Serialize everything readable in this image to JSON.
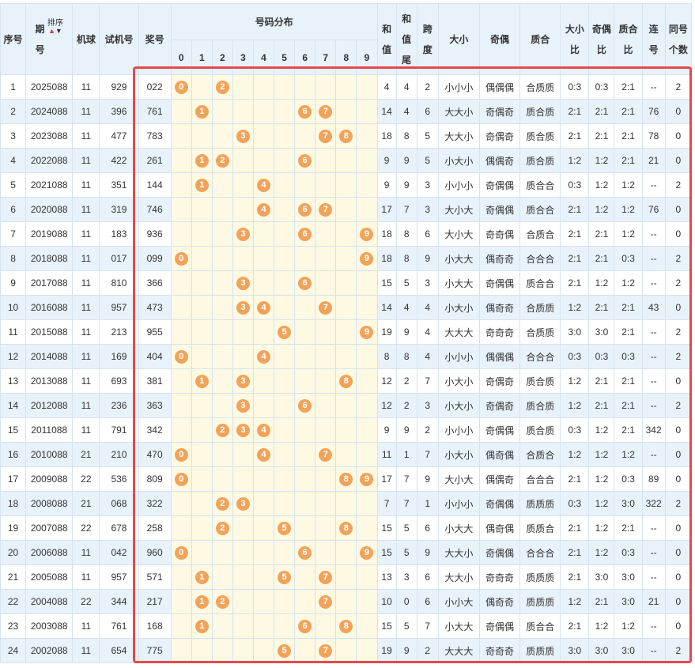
{
  "header": {
    "seq": "序号",
    "period_line1": "期",
    "period_line2": "号",
    "sort_label": "排序",
    "machine": "机球",
    "trial": "试机号",
    "prize": "奖号",
    "dist": "号码分布",
    "digits": [
      "0",
      "1",
      "2",
      "3",
      "4",
      "5",
      "6",
      "7",
      "8",
      "9"
    ],
    "sum_line1": "和",
    "sum_line2": "值",
    "sumtail_line1": "和",
    "sumtail_line2": "值",
    "sumtail_line3": "尾",
    "span_line1": "跨",
    "span_line2": "度",
    "size": "大小",
    "parity": "奇偶",
    "prime": "质合",
    "size_ratio_line1": "大小",
    "size_ratio_line2": "比",
    "parity_ratio_line1": "奇偶",
    "parity_ratio_line2": "比",
    "prime_ratio_line1": "质合",
    "prime_ratio_line2": "比",
    "consec_line1": "连",
    "consec_line2": "号",
    "same_line1": "同号",
    "same_line2": "个数"
  },
  "colors": {
    "accent": "#f2a35a",
    "header_bg": "#e8f2fb",
    "highlight_border": "#e8474c"
  },
  "rows": [
    {
      "seq": "1",
      "period": "2025088",
      "machine": "11",
      "trial": "929",
      "prize": "022",
      "digits": [
        0,
        2
      ],
      "sum": "4",
      "sumtail": "4",
      "span": "2",
      "size": "小小小",
      "parity": "偶偶偶",
      "prime": "合质质",
      "sr": "0:3",
      "pr": "0:3",
      "qr": "2:1",
      "consec": "--",
      "same": "2"
    },
    {
      "seq": "2",
      "period": "2024088",
      "machine": "11",
      "trial": "396",
      "prize": "761",
      "digits": [
        1,
        6,
        7
      ],
      "sum": "14",
      "sumtail": "4",
      "span": "6",
      "size": "大大小",
      "parity": "奇偶奇",
      "prime": "质合质",
      "sr": "2:1",
      "pr": "2:1",
      "qr": "2:1",
      "consec": "76",
      "same": "0"
    },
    {
      "seq": "3",
      "period": "2023088",
      "machine": "11",
      "trial": "477",
      "prize": "783",
      "digits": [
        3,
        7,
        8
      ],
      "sum": "18",
      "sumtail": "8",
      "span": "5",
      "size": "大大小",
      "parity": "奇偶奇",
      "prime": "质合质",
      "sr": "2:1",
      "pr": "2:1",
      "qr": "2:1",
      "consec": "78",
      "same": "0"
    },
    {
      "seq": "4",
      "period": "2022088",
      "machine": "11",
      "trial": "422",
      "prize": "261",
      "digits": [
        1,
        2,
        6
      ],
      "sum": "9",
      "sumtail": "9",
      "span": "5",
      "size": "小大小",
      "parity": "偶偶奇",
      "prime": "质合质",
      "sr": "1:2",
      "pr": "1:2",
      "qr": "2:1",
      "consec": "21",
      "same": "0"
    },
    {
      "seq": "5",
      "period": "2021088",
      "machine": "11",
      "trial": "351",
      "prize": "144",
      "digits": [
        1,
        4
      ],
      "sum": "9",
      "sumtail": "9",
      "span": "3",
      "size": "小小小",
      "parity": "奇偶偶",
      "prime": "质合合",
      "sr": "0:3",
      "pr": "1:2",
      "qr": "1:2",
      "consec": "--",
      "same": "2"
    },
    {
      "seq": "6",
      "period": "2020088",
      "machine": "11",
      "trial": "319",
      "prize": "746",
      "digits": [
        4,
        6,
        7
      ],
      "sum": "17",
      "sumtail": "7",
      "span": "3",
      "size": "大小大",
      "parity": "奇偶偶",
      "prime": "质合合",
      "sr": "2:1",
      "pr": "1:2",
      "qr": "1:2",
      "consec": "76",
      "same": "0"
    },
    {
      "seq": "7",
      "period": "2019088",
      "machine": "11",
      "trial": "183",
      "prize": "936",
      "digits": [
        3,
        6,
        9
      ],
      "sum": "18",
      "sumtail": "8",
      "span": "6",
      "size": "大小大",
      "parity": "奇奇偶",
      "prime": "合质合",
      "sr": "2:1",
      "pr": "2:1",
      "qr": "1:2",
      "consec": "--",
      "same": "0"
    },
    {
      "seq": "8",
      "period": "2018088",
      "machine": "11",
      "trial": "017",
      "prize": "099",
      "digits": [
        0,
        9
      ],
      "sum": "18",
      "sumtail": "8",
      "span": "9",
      "size": "小大大",
      "parity": "偶奇奇",
      "prime": "合合合",
      "sr": "2:1",
      "pr": "2:1",
      "qr": "0:3",
      "consec": "--",
      "same": "2"
    },
    {
      "seq": "9",
      "period": "2017088",
      "machine": "11",
      "trial": "810",
      "prize": "366",
      "digits": [
        3,
        6
      ],
      "sum": "15",
      "sumtail": "5",
      "span": "3",
      "size": "小大大",
      "parity": "奇偶偶",
      "prime": "质合合",
      "sr": "2:1",
      "pr": "1:2",
      "qr": "1:2",
      "consec": "--",
      "same": "2"
    },
    {
      "seq": "10",
      "period": "2016088",
      "machine": "11",
      "trial": "957",
      "prize": "473",
      "digits": [
        3,
        4,
        7
      ],
      "sum": "14",
      "sumtail": "4",
      "span": "4",
      "size": "小大小",
      "parity": "偶奇奇",
      "prime": "合质质",
      "sr": "1:2",
      "pr": "2:1",
      "qr": "2:1",
      "consec": "43",
      "same": "0"
    },
    {
      "seq": "11",
      "period": "2015088",
      "machine": "11",
      "trial": "213",
      "prize": "955",
      "digits": [
        5,
        9
      ],
      "sum": "19",
      "sumtail": "9",
      "span": "4",
      "size": "大大大",
      "parity": "奇奇奇",
      "prime": "合质质",
      "sr": "3:0",
      "pr": "3:0",
      "qr": "2:1",
      "consec": "--",
      "same": "2"
    },
    {
      "seq": "12",
      "period": "2014088",
      "machine": "11",
      "trial": "169",
      "prize": "404",
      "digits": [
        0,
        4
      ],
      "sum": "8",
      "sumtail": "8",
      "span": "4",
      "size": "小小小",
      "parity": "偶偶偶",
      "prime": "合合合",
      "sr": "0:3",
      "pr": "0:3",
      "qr": "0:3",
      "consec": "--",
      "same": "2"
    },
    {
      "seq": "13",
      "period": "2013088",
      "machine": "11",
      "trial": "693",
      "prize": "381",
      "digits": [
        1,
        3,
        8
      ],
      "sum": "12",
      "sumtail": "2",
      "span": "7",
      "size": "小大小",
      "parity": "奇偶奇",
      "prime": "质合质",
      "sr": "1:2",
      "pr": "2:1",
      "qr": "2:1",
      "consec": "--",
      "same": "0"
    },
    {
      "seq": "14",
      "period": "2012088",
      "machine": "11",
      "trial": "236",
      "prize": "363",
      "digits": [
        3,
        6
      ],
      "sum": "12",
      "sumtail": "2",
      "span": "3",
      "size": "小大小",
      "parity": "奇偶奇",
      "prime": "质合质",
      "sr": "1:2",
      "pr": "2:1",
      "qr": "2:1",
      "consec": "--",
      "same": "2"
    },
    {
      "seq": "15",
      "period": "2011088",
      "machine": "11",
      "trial": "791",
      "prize": "342",
      "digits": [
        2,
        3,
        4
      ],
      "sum": "9",
      "sumtail": "9",
      "span": "2",
      "size": "小小小",
      "parity": "奇偶偶",
      "prime": "质合质",
      "sr": "0:3",
      "pr": "1:2",
      "qr": "2:1",
      "consec": "342",
      "same": "0"
    },
    {
      "seq": "16",
      "period": "2010088",
      "machine": "21",
      "trial": "210",
      "prize": "470",
      "digits": [
        0,
        4,
        7
      ],
      "sum": "11",
      "sumtail": "1",
      "span": "7",
      "size": "小大小",
      "parity": "偶奇偶",
      "prime": "合质合",
      "sr": "1:2",
      "pr": "1:2",
      "qr": "1:2",
      "consec": "--",
      "same": "0"
    },
    {
      "seq": "17",
      "period": "2009088",
      "machine": "22",
      "trial": "536",
      "prize": "809",
      "digits": [
        0,
        8,
        9
      ],
      "sum": "17",
      "sumtail": "7",
      "span": "9",
      "size": "大小大",
      "parity": "偶偶奇",
      "prime": "合合合",
      "sr": "2:1",
      "pr": "1:2",
      "qr": "0:3",
      "consec": "89",
      "same": "0"
    },
    {
      "seq": "18",
      "period": "2008088",
      "machine": "21",
      "trial": "068",
      "prize": "322",
      "digits": [
        2,
        3
      ],
      "sum": "7",
      "sumtail": "7",
      "span": "1",
      "size": "小小小",
      "parity": "奇偶偶",
      "prime": "质质质",
      "sr": "0:3",
      "pr": "1:2",
      "qr": "3:0",
      "consec": "322",
      "same": "2"
    },
    {
      "seq": "19",
      "period": "2007088",
      "machine": "22",
      "trial": "678",
      "prize": "258",
      "digits": [
        2,
        5,
        8
      ],
      "sum": "15",
      "sumtail": "5",
      "span": "6",
      "size": "小大大",
      "parity": "偶奇偶",
      "prime": "质质合",
      "sr": "2:1",
      "pr": "1:2",
      "qr": "2:1",
      "consec": "--",
      "same": "0"
    },
    {
      "seq": "20",
      "period": "2006088",
      "machine": "11",
      "trial": "042",
      "prize": "960",
      "digits": [
        0,
        6,
        9
      ],
      "sum": "15",
      "sumtail": "5",
      "span": "9",
      "size": "大大小",
      "parity": "奇偶偶",
      "prime": "合合合",
      "sr": "2:1",
      "pr": "1:2",
      "qr": "0:3",
      "consec": "--",
      "same": "0"
    },
    {
      "seq": "21",
      "period": "2005088",
      "machine": "11",
      "trial": "957",
      "prize": "571",
      "digits": [
        1,
        5,
        7
      ],
      "sum": "13",
      "sumtail": "3",
      "span": "6",
      "size": "大大小",
      "parity": "奇奇奇",
      "prime": "质质质",
      "sr": "2:1",
      "pr": "3:0",
      "qr": "3:0",
      "consec": "--",
      "same": "0"
    },
    {
      "seq": "22",
      "period": "2004088",
      "machine": "22",
      "trial": "344",
      "prize": "217",
      "digits": [
        1,
        2,
        7
      ],
      "sum": "10",
      "sumtail": "0",
      "span": "6",
      "size": "小小大",
      "parity": "偶奇奇",
      "prime": "质质质",
      "sr": "1:2",
      "pr": "2:1",
      "qr": "3:0",
      "consec": "21",
      "same": "0"
    },
    {
      "seq": "23",
      "period": "2003088",
      "machine": "11",
      "trial": "761",
      "prize": "168",
      "digits": [
        1,
        6,
        8
      ],
      "sum": "15",
      "sumtail": "5",
      "span": "7",
      "size": "小大大",
      "parity": "奇偶偶",
      "prime": "质合合",
      "sr": "2:1",
      "pr": "1:2",
      "qr": "1:2",
      "consec": "--",
      "same": "0"
    },
    {
      "seq": "24",
      "period": "2002088",
      "machine": "11",
      "trial": "654",
      "prize": "775",
      "digits": [
        5,
        7
      ],
      "sum": "19",
      "sumtail": "9",
      "span": "2",
      "size": "大大大",
      "parity": "奇奇奇",
      "prime": "质质质",
      "sr": "3:0",
      "pr": "3:0",
      "qr": "3:0",
      "consec": "--",
      "same": "2"
    }
  ]
}
